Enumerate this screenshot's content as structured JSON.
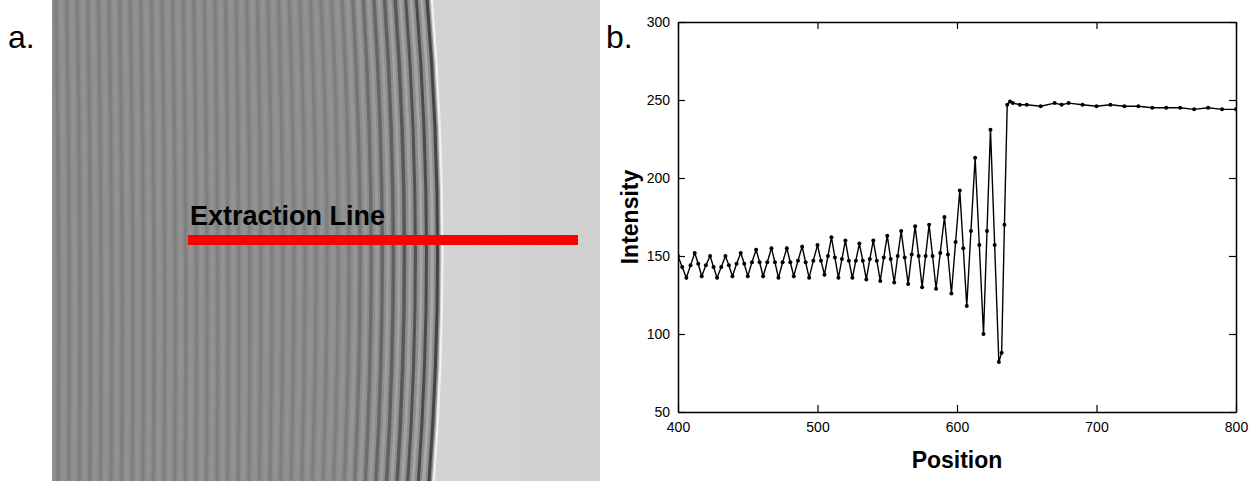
{
  "image_panel": {
    "label": "a.",
    "annotation": "Extraction Line"
  },
  "chart_data": {
    "type": "line",
    "panel_label": "b.",
    "x_label": "Position",
    "y_label": "Intensity",
    "x": [
      400,
      403,
      406,
      409,
      412,
      414.5,
      417,
      420,
      423,
      425.5,
      428,
      431,
      434,
      436.5,
      439,
      442,
      445,
      447.5,
      450,
      453,
      456,
      458.5,
      461,
      464,
      467,
      469.5,
      472,
      475,
      478,
      480.5,
      483,
      486,
      489,
      491.5,
      494,
      497,
      500,
      502.5,
      505,
      507.5,
      510,
      512.5,
      515,
      517.5,
      520,
      522.5,
      525,
      527.5,
      530,
      532.5,
      535,
      537.5,
      540,
      542.5,
      545,
      547.5,
      550,
      552.5,
      555,
      557.5,
      560,
      562.5,
      565,
      567.5,
      570,
      572.5,
      575,
      577.5,
      580,
      582.5,
      585,
      588,
      591,
      593.5,
      596,
      599,
      602,
      604.5,
      607,
      610,
      613,
      616,
      619,
      621.5,
      624,
      627,
      630,
      632,
      634,
      636,
      638,
      640,
      645,
      650,
      660,
      670,
      675,
      680,
      690,
      700,
      710,
      720,
      730,
      740,
      750,
      760,
      770,
      780,
      790,
      800
    ],
    "series": [
      {
        "color": "#000000",
        "marker": "circle",
        "line_style": "solid",
        "values": [
          150,
          143,
          136,
          144,
          152,
          145,
          137,
          144,
          150,
          143,
          136,
          143,
          150,
          144,
          137,
          145,
          152,
          145,
          137,
          146,
          154,
          146,
          137,
          146,
          155,
          146,
          136,
          146,
          155,
          146,
          137,
          147,
          156,
          146,
          136,
          147,
          157,
          147,
          138,
          150,
          162,
          149,
          136,
          148,
          160,
          147,
          136,
          147,
          158,
          147,
          135,
          148,
          160,
          147,
          134,
          149,
          163,
          148,
          133,
          150,
          166,
          149,
          132,
          151,
          169,
          150,
          130,
          150,
          170,
          150,
          129,
          152,
          175,
          151,
          126,
          159,
          192,
          155,
          118,
          166,
          213,
          157,
          100,
          166,
          231,
          157,
          82,
          88,
          170,
          247,
          249,
          248,
          247,
          247,
          246,
          248,
          247,
          248,
          247,
          246,
          247,
          246,
          246,
          245,
          245,
          245,
          244,
          245,
          244,
          244
        ]
      }
    ],
    "xlim": [
      400,
      800
    ],
    "ylim": [
      50,
      300
    ],
    "xticks": [
      400,
      500,
      600,
      700,
      800
    ],
    "yticks": [
      50,
      100,
      150,
      200,
      250,
      300
    ]
  }
}
